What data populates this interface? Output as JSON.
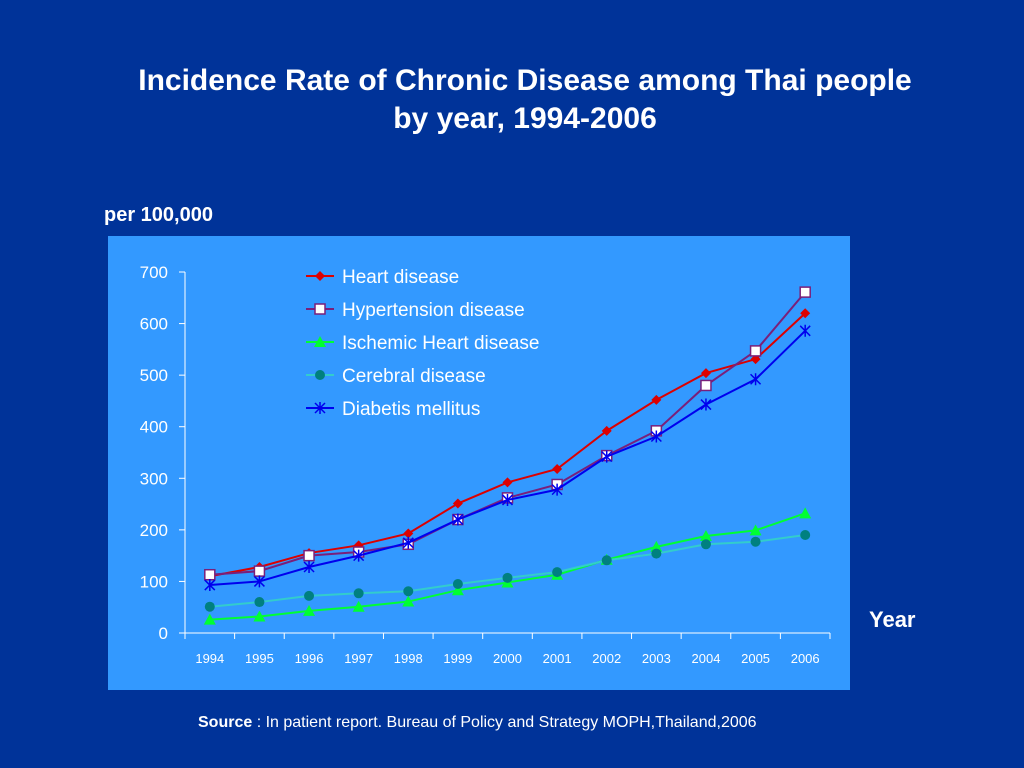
{
  "chart_data": {
    "type": "line",
    "title_line1": "Incidence Rate of Chronic Disease among Thai people",
    "title_line2": "by year, 1994-2006",
    "ylabel": "per 100,000",
    "xlabel": "Year",
    "ylim": [
      0,
      700
    ],
    "yticks": [
      0,
      100,
      200,
      300,
      400,
      500,
      600,
      700
    ],
    "categories": [
      "1994",
      "1995",
      "1996",
      "1997",
      "1998",
      "1999",
      "2000",
      "2001",
      "2002",
      "2003",
      "2004",
      "2005",
      "2006"
    ],
    "legend_position": "top-center",
    "series": [
      {
        "name": "Heart disease",
        "color": "#dd0000",
        "marker": "diamond",
        "values": [
          110,
          128,
          155,
          170,
          193,
          251,
          292,
          318,
          392,
          452,
          504,
          531,
          620
        ]
      },
      {
        "name": "Hypertension disease",
        "color": "#7a1f7a",
        "marker": "square",
        "values": [
          113,
          120,
          150,
          157,
          172,
          220,
          262,
          288,
          344,
          392,
          480,
          547,
          661
        ]
      },
      {
        "name": "Ischemic Heart disease",
        "color": "#00ff33",
        "marker": "triangle",
        "values": [
          26,
          32,
          43,
          51,
          61,
          83,
          98,
          113,
          142,
          167,
          188,
          199,
          232
        ]
      },
      {
        "name": "Cerebral disease",
        "color": "#33cccc",
        "marker": "circle",
        "marker_color": "#008080",
        "values": [
          51,
          60,
          72,
          77,
          81,
          95,
          107,
          118,
          141,
          154,
          172,
          177,
          190
        ]
      },
      {
        "name": "Diabetis mellitus",
        "color": "#0000ee",
        "marker": "star",
        "values": [
          93,
          100,
          128,
          150,
          175,
          220,
          258,
          278,
          342,
          381,
          443,
          492,
          586
        ]
      }
    ]
  },
  "colors": {
    "background": "#003399",
    "plot_panel": "#3399ff",
    "axis": "#ffffff"
  },
  "source": {
    "label": "Source",
    "text": " : In patient report. Bureau of Policy and Strategy MOPH,Thailand,2006"
  }
}
